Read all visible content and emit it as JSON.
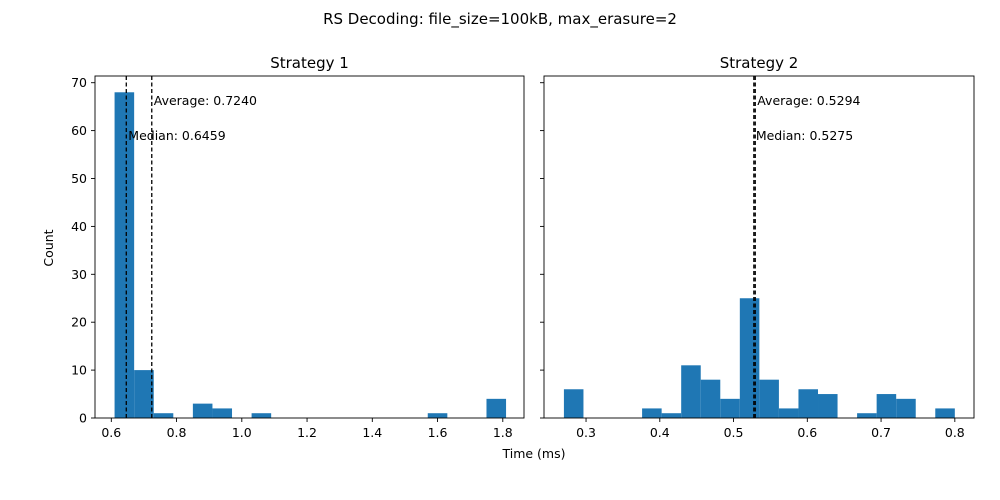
{
  "figure": {
    "suptitle": "RS Decoding: file_size=100kB, max_erasure=2",
    "xlabel": "Time (ms)",
    "ylabel": "Count"
  },
  "colors": {
    "bar": "#1f77b4",
    "line": "#000000",
    "frame": "#000000"
  },
  "chart_data": [
    {
      "type": "bar",
      "subtype": "histogram",
      "title": "Strategy 1",
      "xlabel": "Time (ms)",
      "ylabel": "Count",
      "xlim": [
        0.55,
        1.865
      ],
      "ylim": [
        0,
        71.4
      ],
      "xticks": [
        0.6,
        0.8,
        1.0,
        1.2,
        1.4,
        1.6,
        1.8
      ],
      "xtick_labels": [
        "0.6",
        "0.8",
        "1.0",
        "1.2",
        "1.4",
        "1.6",
        "1.8"
      ],
      "yticks": [
        0,
        10,
        20,
        30,
        40,
        50,
        60,
        70
      ],
      "ytick_labels": [
        "0",
        "10",
        "20",
        "30",
        "40",
        "50",
        "60",
        "70"
      ],
      "bins": [
        {
          "x0": 0.61,
          "x1": 0.67,
          "count": 68
        },
        {
          "x0": 0.67,
          "x1": 0.73,
          "count": 10
        },
        {
          "x0": 0.73,
          "x1": 0.79,
          "count": 1
        },
        {
          "x0": 0.79,
          "x1": 0.85,
          "count": 0
        },
        {
          "x0": 0.85,
          "x1": 0.91,
          "count": 3
        },
        {
          "x0": 0.91,
          "x1": 0.97,
          "count": 2
        },
        {
          "x0": 0.97,
          "x1": 1.03,
          "count": 0
        },
        {
          "x0": 1.03,
          "x1": 1.09,
          "count": 1
        },
        {
          "x0": 1.09,
          "x1": 1.15,
          "count": 0
        },
        {
          "x0": 1.15,
          "x1": 1.21,
          "count": 0
        },
        {
          "x0": 1.21,
          "x1": 1.27,
          "count": 0
        },
        {
          "x0": 1.27,
          "x1": 1.33,
          "count": 0
        },
        {
          "x0": 1.33,
          "x1": 1.39,
          "count": 0
        },
        {
          "x0": 1.39,
          "x1": 1.45,
          "count": 0
        },
        {
          "x0": 1.45,
          "x1": 1.51,
          "count": 0
        },
        {
          "x0": 1.51,
          "x1": 1.57,
          "count": 0
        },
        {
          "x0": 1.57,
          "x1": 1.63,
          "count": 1
        },
        {
          "x0": 1.63,
          "x1": 1.69,
          "count": 0
        },
        {
          "x0": 1.69,
          "x1": 1.75,
          "count": 0
        },
        {
          "x0": 1.75,
          "x1": 1.81,
          "count": 4
        }
      ],
      "average": 0.724,
      "median": 0.6459,
      "average_label": "Average: 0.7240",
      "median_label": "Median: 0.6459"
    },
    {
      "type": "bar",
      "subtype": "histogram",
      "title": "Strategy 2",
      "xlabel": "Time (ms)",
      "ylabel": "Count",
      "xlim": [
        0.243,
        0.826
      ],
      "ylim": [
        0,
        71.4
      ],
      "xticks": [
        0.3,
        0.4,
        0.5,
        0.6,
        0.7,
        0.8
      ],
      "xtick_labels": [
        "0.3",
        "0.4",
        "0.5",
        "0.6",
        "0.7",
        "0.8"
      ],
      "yticks": [
        0,
        10,
        20,
        30,
        40,
        50,
        60,
        70
      ],
      "ytick_labels": [],
      "bins": [
        {
          "x0": 0.27,
          "x1": 0.2965,
          "count": 6
        },
        {
          "x0": 0.2965,
          "x1": 0.323,
          "count": 0
        },
        {
          "x0": 0.323,
          "x1": 0.3495,
          "count": 0
        },
        {
          "x0": 0.3495,
          "x1": 0.376,
          "count": 0
        },
        {
          "x0": 0.376,
          "x1": 0.4025,
          "count": 2
        },
        {
          "x0": 0.4025,
          "x1": 0.429,
          "count": 1
        },
        {
          "x0": 0.429,
          "x1": 0.4555,
          "count": 11
        },
        {
          "x0": 0.4555,
          "x1": 0.482,
          "count": 8
        },
        {
          "x0": 0.482,
          "x1": 0.5085,
          "count": 4
        },
        {
          "x0": 0.5085,
          "x1": 0.535,
          "count": 25
        },
        {
          "x0": 0.535,
          "x1": 0.5615,
          "count": 8
        },
        {
          "x0": 0.5615,
          "x1": 0.588,
          "count": 2
        },
        {
          "x0": 0.588,
          "x1": 0.6145,
          "count": 6
        },
        {
          "x0": 0.6145,
          "x1": 0.641,
          "count": 5
        },
        {
          "x0": 0.641,
          "x1": 0.6675,
          "count": 0
        },
        {
          "x0": 0.6675,
          "x1": 0.694,
          "count": 1
        },
        {
          "x0": 0.694,
          "x1": 0.7205,
          "count": 5
        },
        {
          "x0": 0.7205,
          "x1": 0.747,
          "count": 4
        },
        {
          "x0": 0.747,
          "x1": 0.7735,
          "count": 0
        },
        {
          "x0": 0.7735,
          "x1": 0.8,
          "count": 2
        }
      ],
      "average": 0.5294,
      "median": 0.5275,
      "average_label": "Average: 0.5294",
      "median_label": "Median: 0.5275"
    }
  ]
}
